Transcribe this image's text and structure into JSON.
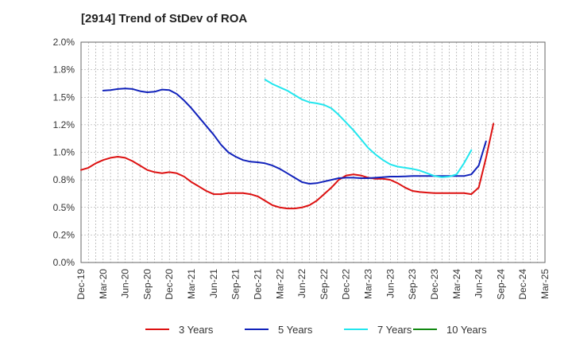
{
  "chart_data": {
    "type": "line",
    "title": "[2914]  Trend of StDev of ROA",
    "xlabel": "",
    "ylabel": "",
    "ylim": [
      0,
      2.0
    ],
    "yticks": [
      "0.0%",
      "0.2%",
      "0.5%",
      "0.8%",
      "1.0%",
      "1.2%",
      "1.5%",
      "1.8%",
      "2.0%"
    ],
    "xticks": [
      "Dec-19",
      "Mar-20",
      "Jun-20",
      "Sep-20",
      "Dec-20",
      "Mar-21",
      "Jun-21",
      "Sep-21",
      "Dec-21",
      "Mar-22",
      "Jun-22",
      "Sep-22",
      "Dec-22",
      "Mar-23",
      "Jun-23",
      "Sep-23",
      "Dec-23",
      "Mar-24",
      "Jun-24",
      "Sep-24",
      "Dec-24",
      "Mar-25"
    ],
    "grid": true,
    "legend_position": "bottom",
    "series": [
      {
        "name": "3 Years",
        "color": "#dd1111",
        "points": [
          [
            0,
            0.84
          ],
          [
            1,
            0.86
          ],
          [
            2,
            0.9
          ],
          [
            3,
            0.93
          ],
          [
            4,
            0.95
          ],
          [
            5,
            0.96
          ],
          [
            6,
            0.95
          ],
          [
            7,
            0.92
          ],
          [
            8,
            0.88
          ],
          [
            9,
            0.84
          ],
          [
            10,
            0.82
          ],
          [
            11,
            0.81
          ],
          [
            12,
            0.82
          ],
          [
            13,
            0.81
          ],
          [
            14,
            0.78
          ],
          [
            15,
            0.73
          ],
          [
            16,
            0.69
          ],
          [
            17,
            0.65
          ],
          [
            18,
            0.62
          ],
          [
            19,
            0.62
          ],
          [
            20,
            0.63
          ],
          [
            21,
            0.63
          ],
          [
            22,
            0.63
          ],
          [
            23,
            0.62
          ],
          [
            24,
            0.6
          ],
          [
            25,
            0.56
          ],
          [
            26,
            0.52
          ],
          [
            27,
            0.5
          ],
          [
            28,
            0.49
          ],
          [
            29,
            0.49
          ],
          [
            30,
            0.5
          ],
          [
            31,
            0.52
          ],
          [
            32,
            0.56
          ],
          [
            33,
            0.62
          ],
          [
            34,
            0.68
          ],
          [
            35,
            0.75
          ],
          [
            36,
            0.79
          ],
          [
            37,
            0.8
          ],
          [
            38,
            0.79
          ],
          [
            39,
            0.77
          ],
          [
            40,
            0.76
          ],
          [
            41,
            0.76
          ],
          [
            42,
            0.75
          ],
          [
            43,
            0.72
          ],
          [
            44,
            0.68
          ],
          [
            45,
            0.65
          ],
          [
            46,
            0.64
          ],
          [
            47,
            0.635
          ],
          [
            48,
            0.63
          ],
          [
            49,
            0.63
          ],
          [
            50,
            0.63
          ],
          [
            51,
            0.63
          ],
          [
            52,
            0.63
          ],
          [
            53,
            0.62
          ],
          [
            54,
            0.68
          ],
          [
            55,
            0.95
          ],
          [
            56,
            1.26
          ]
        ]
      },
      {
        "name": "5 Years",
        "color": "#1122bb",
        "points": [
          [
            3,
            1.56
          ],
          [
            4,
            1.565
          ],
          [
            5,
            1.575
          ],
          [
            6,
            1.58
          ],
          [
            7,
            1.575
          ],
          [
            8,
            1.555
          ],
          [
            9,
            1.545
          ],
          [
            10,
            1.55
          ],
          [
            11,
            1.57
          ],
          [
            12,
            1.565
          ],
          [
            13,
            1.53
          ],
          [
            14,
            1.47
          ],
          [
            15,
            1.4
          ],
          [
            16,
            1.32
          ],
          [
            17,
            1.24
          ],
          [
            18,
            1.16
          ],
          [
            19,
            1.07
          ],
          [
            20,
            1.0
          ],
          [
            21,
            0.96
          ],
          [
            22,
            0.93
          ],
          [
            23,
            0.915
          ],
          [
            24,
            0.91
          ],
          [
            25,
            0.9
          ],
          [
            26,
            0.88
          ],
          [
            27,
            0.85
          ],
          [
            28,
            0.81
          ],
          [
            29,
            0.77
          ],
          [
            30,
            0.73
          ],
          [
            31,
            0.715
          ],
          [
            32,
            0.72
          ],
          [
            33,
            0.735
          ],
          [
            34,
            0.75
          ],
          [
            35,
            0.765
          ],
          [
            36,
            0.77
          ],
          [
            37,
            0.77
          ],
          [
            38,
            0.765
          ],
          [
            39,
            0.765
          ],
          [
            40,
            0.77
          ],
          [
            41,
            0.775
          ],
          [
            42,
            0.78
          ],
          [
            43,
            0.78
          ],
          [
            44,
            0.782
          ],
          [
            45,
            0.785
          ],
          [
            46,
            0.785
          ],
          [
            47,
            0.785
          ],
          [
            48,
            0.785
          ],
          [
            49,
            0.785
          ],
          [
            50,
            0.785
          ],
          [
            51,
            0.785
          ],
          [
            52,
            0.785
          ],
          [
            53,
            0.8
          ],
          [
            54,
            0.88
          ],
          [
            55,
            1.1
          ]
        ]
      },
      {
        "name": "7 Years",
        "color": "#22e6ee",
        "points": [
          [
            25,
            1.66
          ],
          [
            26,
            1.62
          ],
          [
            27,
            1.59
          ],
          [
            28,
            1.56
          ],
          [
            29,
            1.52
          ],
          [
            30,
            1.48
          ],
          [
            31,
            1.455
          ],
          [
            32,
            1.445
          ],
          [
            33,
            1.43
          ],
          [
            34,
            1.4
          ],
          [
            35,
            1.34
          ],
          [
            36,
            1.27
          ],
          [
            37,
            1.2
          ],
          [
            38,
            1.12
          ],
          [
            39,
            1.04
          ],
          [
            40,
            0.98
          ],
          [
            41,
            0.93
          ],
          [
            42,
            0.89
          ],
          [
            43,
            0.87
          ],
          [
            44,
            0.86
          ],
          [
            45,
            0.85
          ],
          [
            46,
            0.835
          ],
          [
            47,
            0.81
          ],
          [
            48,
            0.785
          ],
          [
            49,
            0.775
          ],
          [
            50,
            0.78
          ],
          [
            51,
            0.8
          ],
          [
            52,
            0.9
          ],
          [
            53,
            1.02
          ]
        ]
      },
      {
        "name": "10 Years",
        "color": "#118811",
        "points": []
      }
    ]
  }
}
